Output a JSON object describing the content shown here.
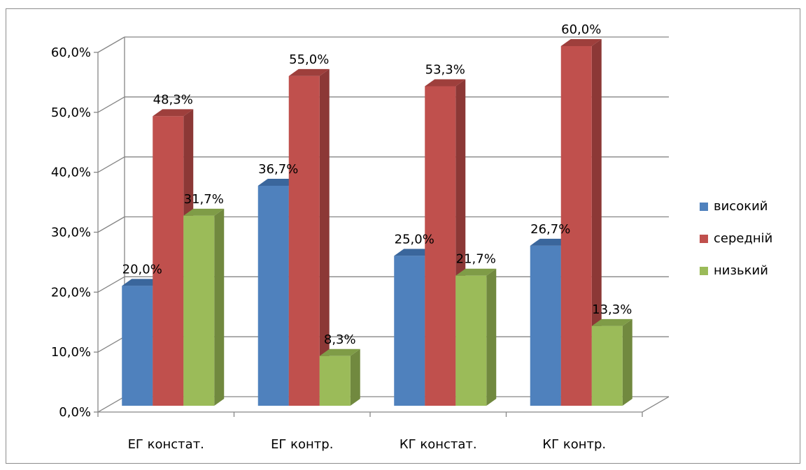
{
  "chart_data": {
    "type": "bar",
    "title": "",
    "xlabel": "",
    "ylabel": "",
    "ylim": [
      0,
      60
    ],
    "y_tick_labels": [
      "0,0%",
      "10,0%",
      "20,0%",
      "30,0%",
      "40,0%",
      "50,0%",
      "60,0%"
    ],
    "categories": [
      "ЕГ констат.",
      "ЕГ контр.",
      "КГ констат.",
      "КГ контр."
    ],
    "series": [
      {
        "name": "високий",
        "values": [
          20.0,
          36.7,
          25.0,
          26.7
        ],
        "labels": [
          "20,0%",
          "36,7%",
          "25,0%",
          "26,7%"
        ]
      },
      {
        "name": "середній",
        "values": [
          48.3,
          55.0,
          53.3,
          60.0
        ],
        "labels": [
          "48,3%",
          "55,0%",
          "53,3%",
          "60,0%"
        ]
      },
      {
        "name": "низький",
        "values": [
          31.7,
          8.3,
          21.7,
          13.3
        ],
        "labels": [
          "31,7%",
          "8,3%",
          "21,7%",
          "13,3%"
        ]
      }
    ],
    "colors": {
      "високий": {
        "front": "#4f81bd",
        "side": "#385d8a",
        "top": "#3a669c"
      },
      "середній": {
        "front": "#c0504d",
        "side": "#8c3836",
        "top": "#9e3f3c"
      },
      "низький": {
        "front": "#9bbb59",
        "side": "#71893f",
        "top": "#7f9c47"
      }
    },
    "legend_position": "right",
    "grid": true,
    "style": "3d-clustered-column"
  }
}
